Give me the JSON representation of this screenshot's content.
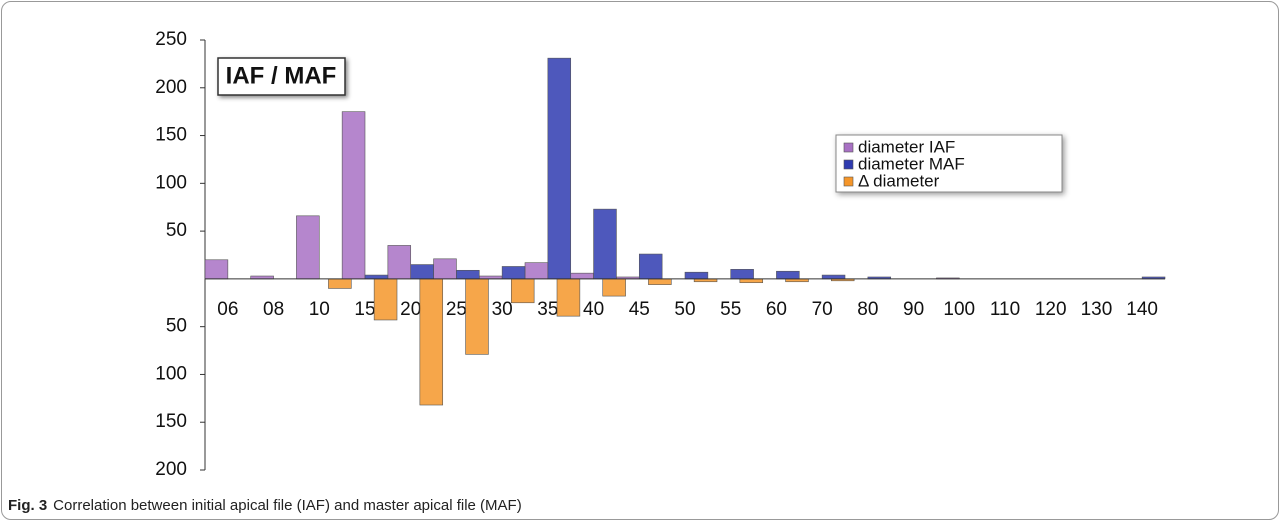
{
  "chart_data": {
    "type": "bar",
    "title": "IAF / MAF",
    "categories": [
      "06",
      "08",
      "10",
      "15",
      "20",
      "25",
      "30",
      "35",
      "40",
      "45",
      "50",
      "55",
      "60",
      "70",
      "80",
      "90",
      "100",
      "110",
      "120",
      "130",
      "140"
    ],
    "series": [
      {
        "name": "diameter IAF",
        "color": "#a871c4",
        "values": [
          20,
          3,
          66,
          175,
          35,
          21,
          3,
          17,
          6,
          2,
          0,
          0,
          0,
          0,
          0,
          0,
          1,
          0,
          0,
          0,
          0
        ]
      },
      {
        "name": "diameter MAF",
        "color": "#2f3bb0",
        "values": [
          0,
          0,
          0,
          4,
          15,
          9,
          13,
          231,
          73,
          26,
          7,
          10,
          8,
          4,
          2,
          0,
          0,
          0,
          0,
          0,
          2
        ]
      },
      {
        "name": "Δ diameter",
        "color": "#f5962a",
        "values": [
          0,
          0,
          -10,
          -43,
          -132,
          -79,
          -25,
          -39,
          -18,
          -6,
          -3,
          -4,
          -3,
          -2,
          0,
          0,
          0,
          0,
          0,
          0,
          0
        ]
      }
    ],
    "ylim": [
      -200,
      250
    ],
    "yticks": [
      {
        "value": -200,
        "label": "200"
      },
      {
        "value": -150,
        "label": "150"
      },
      {
        "value": -100,
        "label": "100"
      },
      {
        "value": -50,
        "label": "50"
      },
      50,
      100,
      150,
      200,
      250
    ],
    "legend": "upper right"
  },
  "figure": {
    "label": "Fig. 3",
    "caption": "Correlation between initial apical file (IAF) and master apical file (MAF)"
  }
}
